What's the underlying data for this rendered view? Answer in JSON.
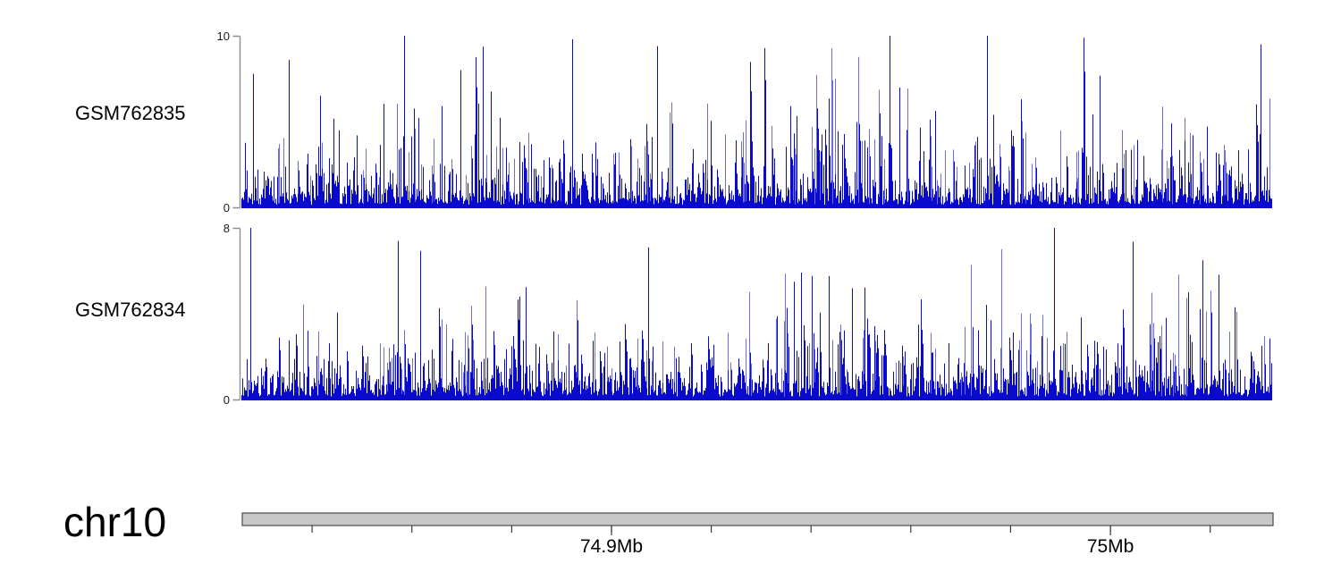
{
  "chart_data": {
    "type": "area",
    "title": "",
    "description": "Genome browser coverage signal tracks over chr10; dense per-base signal is a synthetic statistical reconstruction",
    "tracks": [
      {
        "label": "GSM762835",
        "y_min": 0,
        "y_max": 10,
        "y_min_label": "0",
        "y_max_label": "10",
        "color": "#0a0acd",
        "light_color": "#6e6edc",
        "signal_synthesis": {
          "seed": 762835,
          "bins": 1153,
          "base_min": 0.2,
          "base_mean": 0.5,
          "spike_prob": 0.48,
          "spike_mean": 1.35,
          "tall_prob": 0.18,
          "tall_base": 1.8,
          "tall_mean": 1.1
        },
        "notable_peaks": [
          {
            "bin": 13,
            "value": 7.8
          },
          {
            "bin": 53,
            "value": 8.6
          },
          {
            "bin": 370,
            "value": 9.8
          },
          {
            "bin": 465,
            "value": 9.4
          },
          {
            "bin": 725,
            "value": 10
          },
          {
            "bin": 834,
            "value": 10
          },
          {
            "bin": 1140,
            "value": 9.5
          }
        ]
      },
      {
        "label": "GSM762834",
        "y_min": 0,
        "y_max": 8,
        "y_min_label": "0",
        "y_max_label": "8",
        "color": "#0a0acd",
        "light_color": "#6e6edc",
        "signal_synthesis": {
          "seed": 762834,
          "bins": 1153,
          "base_min": 0.18,
          "base_mean": 0.45,
          "spike_prob": 0.46,
          "spike_mean": 1.15,
          "tall_prob": 0.15,
          "tall_base": 1.5,
          "tall_mean": 0.9
        },
        "notable_peaks": [
          {
            "bin": 10,
            "value": 8
          },
          {
            "bin": 175,
            "value": 7.4
          },
          {
            "bin": 455,
            "value": 7.1
          },
          {
            "bin": 909,
            "value": 8
          },
          {
            "bin": 1075,
            "value": 6.5
          }
        ]
      }
    ],
    "x_axis": {
      "chromosome": "chr10",
      "unit": "Mb",
      "start_mb": 74.826,
      "end_mb": 75.0326,
      "minor_tick_interval_mb": 0.02,
      "major_ticks": [
        {
          "mb": 74.9,
          "label": "74.9Mb"
        },
        {
          "mb": 75.0,
          "label": "75Mb"
        }
      ]
    },
    "ideogram": {
      "fill": "#c8c8c8",
      "border": "#4a4a4a"
    },
    "layout_hints": {
      "legend": "none",
      "grid": "off",
      "y_axis_side": "left",
      "ruler_position": "bottom"
    }
  },
  "colors": {
    "axis": "#8f8f8f",
    "tick": "#3a3a3a",
    "text": "#000000",
    "background": "#ffffff"
  }
}
